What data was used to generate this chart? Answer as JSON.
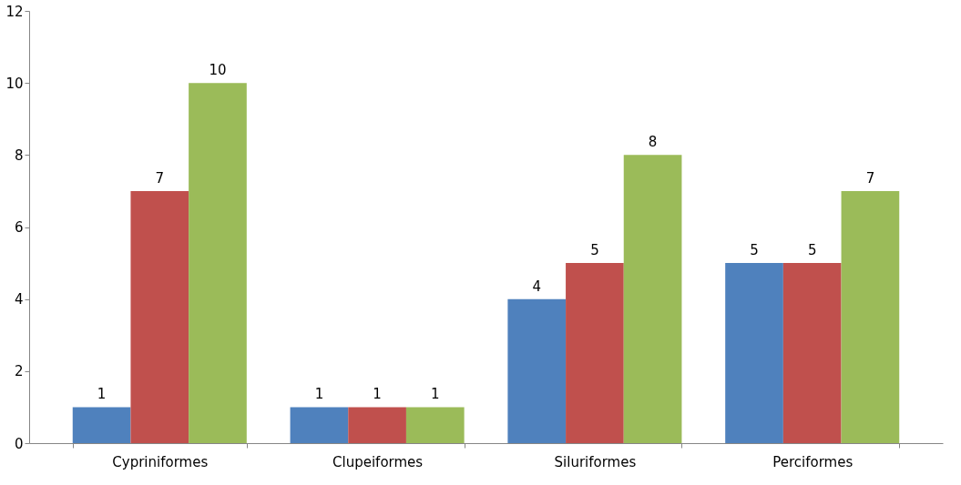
{
  "chart_data": {
    "type": "bar",
    "categories": [
      "Cypriniformes",
      "Clupeiformes",
      "Siluriformes",
      "Perciformes"
    ],
    "series": [
      {
        "color": "#4f81bd",
        "values": [
          1,
          1,
          4,
          5
        ]
      },
      {
        "color": "#c0504d",
        "values": [
          7,
          1,
          5,
          5
        ]
      },
      {
        "color": "#9bbb59",
        "values": [
          10,
          1,
          8,
          7
        ]
      }
    ],
    "ylim": [
      0,
      12
    ],
    "yticks": [
      0,
      2,
      4,
      6,
      8,
      10,
      12
    ],
    "grid": false,
    "data_labels": true
  }
}
